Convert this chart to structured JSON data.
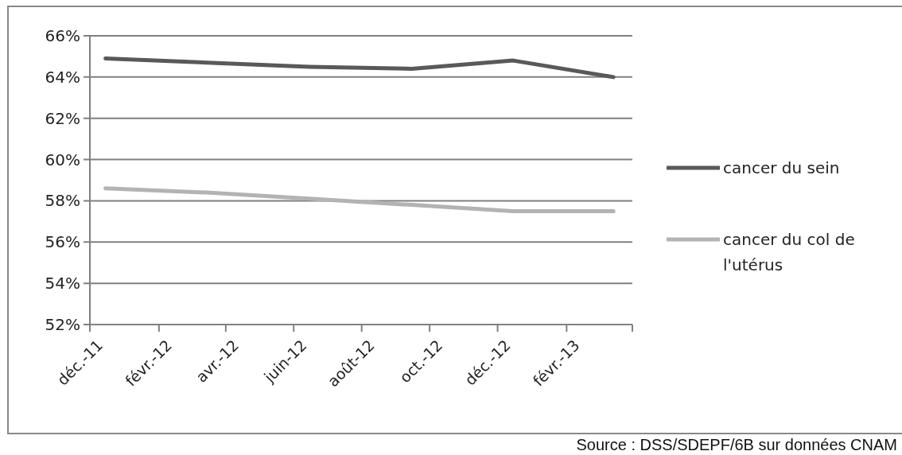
{
  "chart_data": {
    "type": "line",
    "x": [
      "2011-12-15",
      "2012-03-15",
      "2012-06-15",
      "2012-09-15",
      "2012-12-15",
      "2013-03-15"
    ],
    "series": [
      {
        "name": "cancer du sein",
        "color": "#595959",
        "values": [
          64.9,
          64.7,
          64.5,
          64.4,
          64.8,
          64.0
        ]
      },
      {
        "name": "cancer du col de l'utérus",
        "color": "#b3b3b3",
        "values": [
          58.6,
          58.4,
          58.1,
          57.8,
          57.5,
          57.5
        ]
      }
    ],
    "xlim": [
      "2011-12-01",
      "2013-04-01"
    ],
    "xticks": [
      {
        "value": "2011-12-01",
        "label": "déc.-11"
      },
      {
        "value": "2012-02-01",
        "label": "févr.-12"
      },
      {
        "value": "2012-04-01",
        "label": "avr.-12"
      },
      {
        "value": "2012-06-01",
        "label": "juin-12"
      },
      {
        "value": "2012-08-01",
        "label": "août-12"
      },
      {
        "value": "2012-10-01",
        "label": "oct.-12"
      },
      {
        "value": "2012-12-01",
        "label": "déc.-12"
      },
      {
        "value": "2013-02-01",
        "label": "févr.-13"
      },
      {
        "value": "2013-04-01",
        "label": null
      }
    ],
    "ylim": [
      52,
      66
    ],
    "yticks": [
      {
        "value": 52,
        "label": "52%"
      },
      {
        "value": 54,
        "label": "54%"
      },
      {
        "value": 56,
        "label": "56%"
      },
      {
        "value": 58,
        "label": "58%"
      },
      {
        "value": 60,
        "label": "60%"
      },
      {
        "value": 62,
        "label": "62%"
      },
      {
        "value": 64,
        "label": "64%"
      },
      {
        "value": 66,
        "label": "66%"
      }
    ],
    "grid": "y",
    "legend": "right",
    "marker": "none",
    "line_style": "solid",
    "annotations": [
      "Source : DSS/SDEPF/6B sur données CNAM"
    ]
  }
}
